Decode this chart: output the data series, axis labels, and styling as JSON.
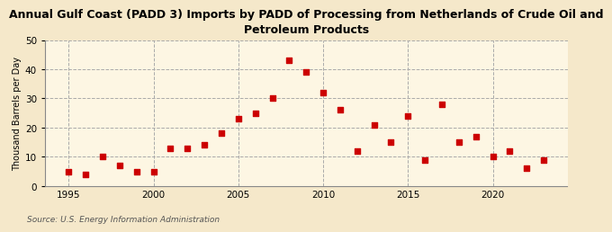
{
  "title": "Annual Gulf Coast (PADD 3) Imports by PADD of Processing from Netherlands of Crude Oil and\nPetroleum Products",
  "ylabel": "Thousand Barrels per Day",
  "source": "Source: U.S. Energy Information Administration",
  "background_color": "#f5e8ca",
  "plot_background_color": "#fdf6e3",
  "years": [
    1995,
    1996,
    1997,
    1998,
    1999,
    2000,
    2001,
    2002,
    2003,
    2004,
    2005,
    2006,
    2007,
    2008,
    2009,
    2010,
    2011,
    2012,
    2013,
    2014,
    2015,
    2016,
    2017,
    2018,
    2019,
    2020,
    2021,
    2022,
    2023
  ],
  "values": [
    5,
    4,
    10,
    7,
    5,
    5,
    13,
    13,
    14,
    18,
    23,
    25,
    30,
    43,
    39,
    32,
    26,
    12,
    21,
    15,
    24,
    9,
    28,
    15,
    17,
    10,
    12,
    6,
    9
  ],
  "marker_color": "#cc0000",
  "marker_size": 4,
  "ylim": [
    0,
    50
  ],
  "yticks": [
    0,
    10,
    20,
    30,
    40,
    50
  ],
  "xticks": [
    1995,
    2000,
    2005,
    2010,
    2015,
    2020
  ],
  "grid_color": "#aaaaaa",
  "grid_style": "--",
  "title_fontsize": 9,
  "ylabel_fontsize": 7,
  "tick_fontsize": 7.5,
  "source_fontsize": 6.5
}
